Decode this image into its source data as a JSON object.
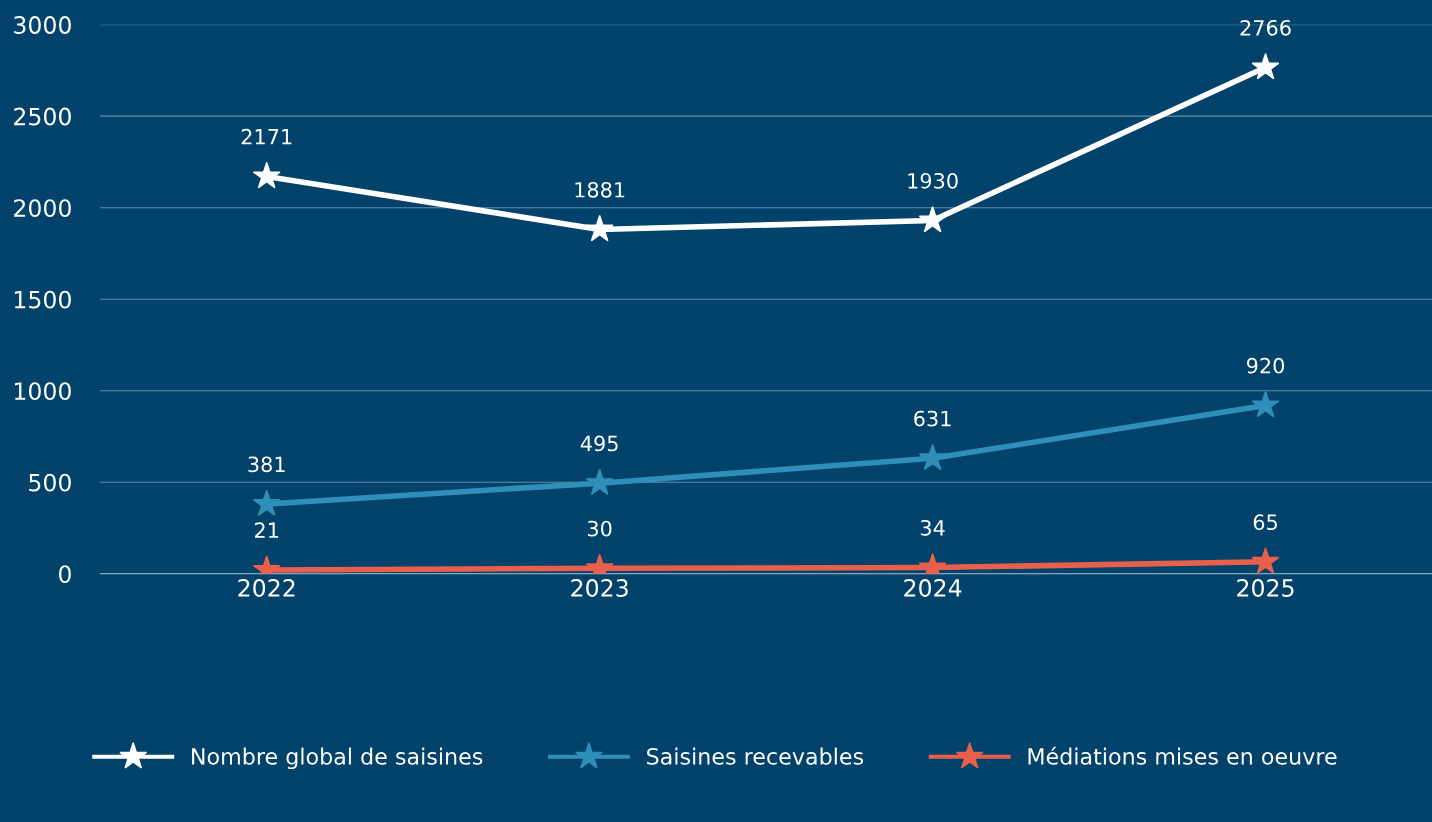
{
  "chart_data": {
    "type": "line",
    "categories": [
      "2022",
      "2023",
      "2024",
      "2025"
    ],
    "series": [
      {
        "name": "Nombre global de saisines",
        "color": "#ffffff",
        "values": [
          2171,
          1881,
          1930,
          2766
        ]
      },
      {
        "name": "Saisines recevables",
        "color": "#2f8fb8",
        "values": [
          381,
          495,
          631,
          920
        ]
      },
      {
        "name": "Médiations mises en oeuvre",
        "color": "#e8604c",
        "values": [
          21,
          30,
          34,
          65
        ]
      }
    ],
    "ylim": [
      0,
      3000
    ],
    "yticks": [
      0,
      500,
      1000,
      1500,
      2000,
      2500,
      3000
    ],
    "grid": "y",
    "legend": "bottom",
    "marker": "star",
    "line_style": "solid",
    "data_labels": true
  }
}
